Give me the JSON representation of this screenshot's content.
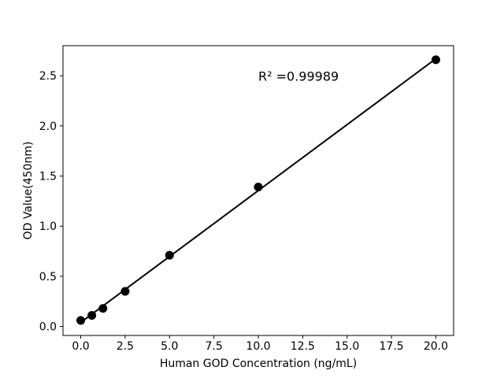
{
  "chart_data": {
    "type": "scatter",
    "title": "",
    "xlabel": "Human GOD Concentration (ng/mL)",
    "ylabel": "OD Value(450nm)",
    "x": [
      0,
      0.625,
      1.25,
      2.5,
      5,
      10,
      20
    ],
    "y": [
      0.06,
      0.11,
      0.18,
      0.35,
      0.71,
      1.39,
      2.66
    ],
    "fit_line": {
      "x": [
        0,
        20
      ],
      "y": [
        0.04,
        2.67
      ]
    },
    "annotation": {
      "text": "R² =0.99989",
      "x": 10,
      "y": 2.45
    },
    "xlim": [
      -1,
      21
    ],
    "ylim": [
      -0.09,
      2.8
    ],
    "xticks": [
      0,
      2.5,
      5,
      7.5,
      10,
      12.5,
      15,
      17.5,
      20
    ],
    "xtick_labels": [
      "0.0",
      "2.5",
      "5.0",
      "7.5",
      "10.0",
      "12.5",
      "15.0",
      "17.5",
      "20.0"
    ],
    "yticks": [
      0,
      0.5,
      1,
      1.5,
      2,
      2.5
    ],
    "ytick_labels": [
      "0.0",
      "0.5",
      "1.0",
      "1.5",
      "2.0",
      "2.5"
    ],
    "grid": false,
    "legend": null,
    "marker_color": "#000000",
    "line_color": "#000000",
    "axis_color": "#000000",
    "background": "#ffffff"
  }
}
